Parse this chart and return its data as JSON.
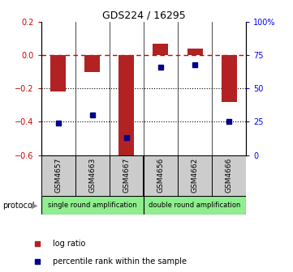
{
  "title": "GDS224 / 16295",
  "samples": [
    "GSM4657",
    "GSM4663",
    "GSM4667",
    "GSM4656",
    "GSM4662",
    "GSM4666"
  ],
  "log_ratios": [
    -0.22,
    -0.1,
    -0.62,
    0.07,
    0.04,
    -0.28
  ],
  "percentile_ranks": [
    24,
    30,
    13,
    66,
    68,
    25
  ],
  "left_ylim": [
    -0.6,
    0.2
  ],
  "left_yticks": [
    -0.6,
    -0.4,
    -0.2,
    0.0,
    0.2
  ],
  "right_ylim": [
    0,
    100
  ],
  "right_yticks": [
    0,
    25,
    50,
    75,
    100
  ],
  "right_yticklabels": [
    "0",
    "25",
    "50",
    "75",
    "100%"
  ],
  "bar_color": "#b22222",
  "dot_color": "#00008b",
  "dashed_color": "#cc0000",
  "protocol_groups": [
    {
      "label": "single round amplification",
      "start": 0,
      "end": 3
    },
    {
      "label": "double round amplification",
      "start": 3,
      "end": 6
    }
  ],
  "legend_bar_label": "log ratio",
  "legend_dot_label": "percentile rank within the sample",
  "dotted_line_color": "black",
  "background_color": "white"
}
